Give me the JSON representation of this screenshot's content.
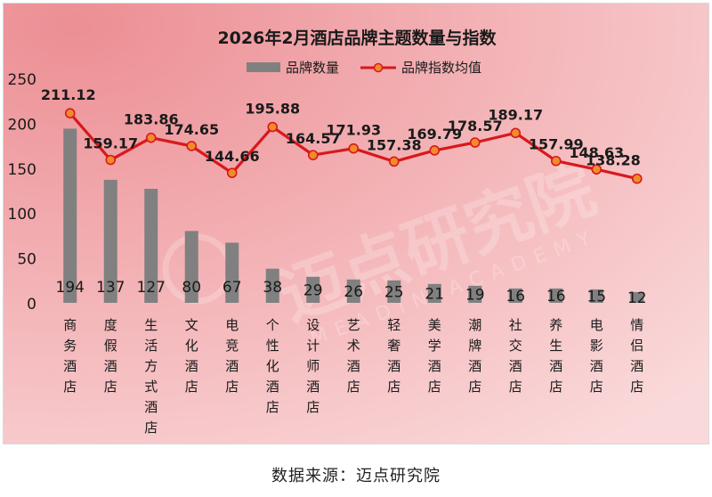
{
  "chart_data": {
    "type": "bar",
    "title": "2026年2月酒店品牌主题数量与指数",
    "legend_position": "top-center",
    "categories": [
      "商务酒店",
      "度假酒店",
      "生活方式酒店",
      "文化酒店",
      "电竞酒店",
      "个性化酒店",
      "设计师酒店",
      "艺术酒店",
      "轻奢酒店",
      "美学酒店",
      "潮牌酒店",
      "社交酒店",
      "养生酒店",
      "电影酒店",
      "情侣酒店"
    ],
    "ylim": [
      0,
      250
    ],
    "yticks": [
      "0",
      "50",
      "100",
      "150",
      "200",
      "250"
    ],
    "grid": false,
    "series": [
      {
        "name": "品牌数量",
        "type": "bar",
        "color": "#808080",
        "values": [
          194,
          137,
          127,
          80,
          67,
          38,
          29,
          26,
          25,
          21,
          19,
          16,
          16,
          15,
          12
        ],
        "labels": [
          "194",
          "137",
          "127",
          "80",
          "67",
          "38",
          "29",
          "26",
          "25",
          "21",
          "19",
          "16",
          "16",
          "15",
          "12"
        ]
      },
      {
        "name": "品牌指数均值",
        "type": "line",
        "color": "#d7191c",
        "marker_color": "#f08c2a",
        "values": [
          211.12,
          159.17,
          183.86,
          174.65,
          144.66,
          195.88,
          164.57,
          171.93,
          157.38,
          169.79,
          178.57,
          189.17,
          157.99,
          148.63,
          138.28
        ],
        "labels": [
          "211.12",
          "159.17",
          "183.86",
          "174.65",
          "144.66",
          "195.88",
          "164.57",
          "171.93",
          "157.38",
          "169.79",
          "178.57",
          "189.17",
          "157.99",
          "148.63",
          "138.28"
        ]
      }
    ]
  },
  "watermark": {
    "text": "迈点研究院",
    "subtext": "MEADIN ACADEMY"
  },
  "source": "数据来源：迈点研究院"
}
